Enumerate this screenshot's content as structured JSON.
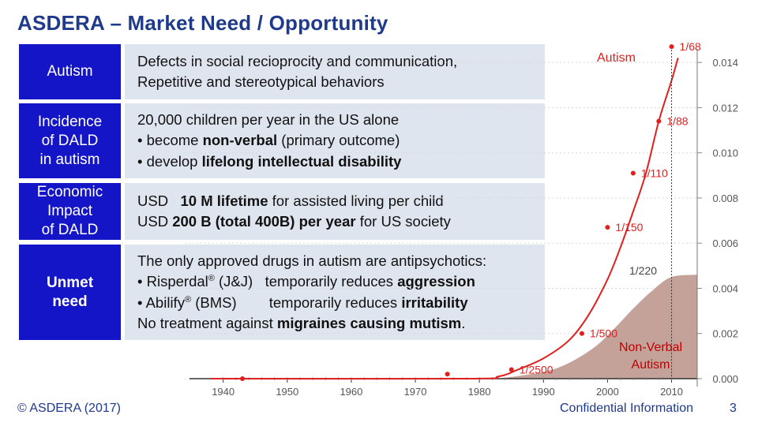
{
  "title": "ASDERA – Market Need / Opportunity",
  "rows": [
    {
      "label": "Autism",
      "lines": [
        [
          {
            "t": "Defects in social recioprocity and communication,"
          }
        ],
        [
          {
            "t": "Repetitive and stereotypical behaviors"
          }
        ]
      ]
    },
    {
      "label": "Incidence\nof DALD\nin autism",
      "lines": [
        [
          {
            "t": "20,000 children per year in the US alone"
          }
        ],
        [
          {
            "t": "• become "
          },
          {
            "t": "non-verbal",
            "b": true
          },
          {
            "t": " (primary outcome)"
          }
        ],
        [
          {
            "t": "• develop "
          },
          {
            "t": "lifelong intellectual disability",
            "b": true
          }
        ]
      ]
    },
    {
      "label": "Economic\nImpact\nof DALD",
      "lines": [
        [
          {
            "t": "USD   "
          },
          {
            "t": "10 M lifetime",
            "b": true
          },
          {
            "t": " for assisted living per child"
          }
        ],
        [
          {
            "t": "USD "
          },
          {
            "t": "200 B (total 400B) per year",
            "b": true
          },
          {
            "t": " for US society"
          }
        ]
      ]
    },
    {
      "label": "Unmet\nneed",
      "lines": [
        [
          {
            "t": "The only approved drugs in autism are antipsychotics:"
          }
        ],
        [
          {
            "t": "• Risperdal"
          },
          {
            "t": "®",
            "sup": true
          },
          {
            "t": " (J&J)   temporarily reduces "
          },
          {
            "t": "aggression",
            "b": true
          }
        ],
        [
          {
            "t": "• Abilify"
          },
          {
            "t": "®",
            "sup": true
          },
          {
            "t": " (BMS)        temporarily reduces "
          },
          {
            "t": "irritability",
            "b": true
          }
        ],
        [
          {
            "t": "No treatment against "
          },
          {
            "t": "migraines causing mutism",
            "b": true
          },
          {
            "t": "."
          }
        ]
      ]
    }
  ],
  "chart_data": {
    "type": "line",
    "title": "",
    "x_ticks": [
      1940,
      1950,
      1960,
      1970,
      1980,
      1990,
      2000,
      2010
    ],
    "y_ticks": [
      "0.000",
      "0.002",
      "0.004",
      "0.006",
      "0.008",
      "0.010",
      "0.012",
      "0.014"
    ],
    "xlim": [
      1934,
      2014
    ],
    "ylim": [
      0.0,
      0.0146
    ],
    "series": [
      {
        "name": "Autism",
        "color": "#e0201f",
        "curve": [
          [
            1938,
            0.0
          ],
          [
            1978,
            0.0
          ],
          [
            1983,
            0.0001
          ],
          [
            1986,
            0.0004
          ],
          [
            1990,
            0.0009
          ],
          [
            1994,
            0.0017
          ],
          [
            1997,
            0.0028
          ],
          [
            2000,
            0.0044
          ],
          [
            2002,
            0.0058
          ],
          [
            2004,
            0.0074
          ],
          [
            2006,
            0.0091
          ],
          [
            2008,
            0.0114
          ],
          [
            2010,
            0.0132
          ],
          [
            2011,
            0.0142
          ]
        ],
        "points": [
          {
            "x": 1943,
            "y": 0.0,
            "label": ""
          },
          {
            "x": 1975,
            "y": 0.0002,
            "label": ""
          },
          {
            "x": 1985,
            "y": 0.0004,
            "label": "1/2500"
          },
          {
            "x": 1996,
            "y": 0.002,
            "label": "1/500"
          },
          {
            "x": 2000,
            "y": 0.0067,
            "label": "1/150"
          },
          {
            "x": 2004,
            "y": 0.0091,
            "label": "1/110"
          },
          {
            "x": 2008,
            "y": 0.0114,
            "label": "1/88"
          },
          {
            "x": 2010,
            "y": 0.0147,
            "label": "1/68"
          }
        ]
      },
      {
        "name": "Non-Verbal Autism",
        "color": "#c4a29a",
        "curve": [
          [
            1983,
            0.0
          ],
          [
            1990,
            0.0003
          ],
          [
            1994,
            0.0007
          ],
          [
            1998,
            0.0014
          ],
          [
            2001,
            0.0022
          ],
          [
            2004,
            0.0031
          ],
          [
            2007,
            0.0039
          ],
          [
            2010,
            0.0045
          ],
          [
            2014,
            0.0046
          ]
        ],
        "label": "1/220"
      }
    ],
    "labels": {
      "autism": "Autism",
      "nonverbal_line1": "Non-Verbal",
      "nonverbal_line2": "Autism"
    }
  },
  "footer": {
    "copyright": "© ASDERA (2017)",
    "confidential": "Confidential Information",
    "page": "3"
  },
  "colors": {
    "title": "#1f3a8a",
    "label_bg": "#1515c8",
    "body_bg": "#dfe5ef",
    "curve": "#e0201f",
    "area": "#c4a29a"
  }
}
